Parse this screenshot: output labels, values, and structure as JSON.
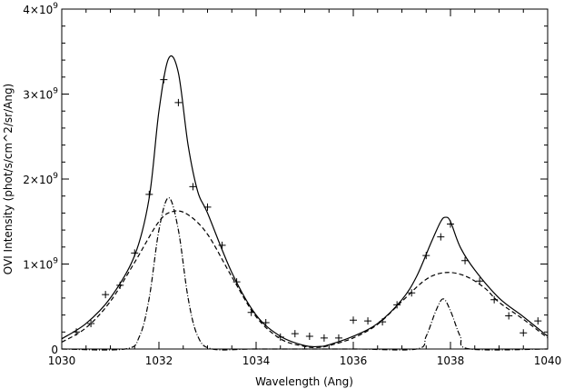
{
  "chart_data": {
    "type": "line",
    "xlabel": "Wavelength (Ang)",
    "ylabel": "OVI Intensity (phot/s/cm^2/sr/Ang)",
    "xlim": [
      1030,
      1040
    ],
    "ylim": [
      0,
      4000000000
    ],
    "x_ticks": [
      1030,
      1032,
      1034,
      1036,
      1038,
      1040
    ],
    "x_tick_labels": [
      "1030",
      "1032",
      "1034",
      "1036",
      "1038",
      "1040"
    ],
    "y_ticks": [
      0,
      1000000000,
      2000000000,
      3000000000,
      4000000000
    ],
    "y_tick_labels": [
      {
        "mant": "0",
        "exp": ""
      },
      {
        "mant": "1×10",
        "exp": "9"
      },
      {
        "mant": "2×10",
        "exp": "9"
      },
      {
        "mant": "3×10",
        "exp": "9"
      },
      {
        "mant": "4×10",
        "exp": "9"
      }
    ],
    "grid": false,
    "series": [
      {
        "style": "points-plus",
        "x": [
          1030.3,
          1030.6,
          1030.9,
          1031.2,
          1031.5,
          1031.8,
          1032.1,
          1032.4,
          1032.7,
          1033.0,
          1033.3,
          1033.6,
          1033.9,
          1034.2,
          1034.5,
          1034.8,
          1035.1,
          1035.4,
          1035.7,
          1036.0,
          1036.3,
          1036.6,
          1036.9,
          1037.2,
          1037.5,
          1037.8,
          1038.0,
          1038.3,
          1038.6,
          1038.9,
          1039.2,
          1039.5,
          1039.8
        ],
        "y": [
          200000000,
          300000000,
          640000000,
          750000000,
          1130000000,
          1820000000,
          3170000000,
          2900000000,
          1910000000,
          1670000000,
          1220000000,
          790000000,
          430000000,
          310000000,
          140000000,
          180000000,
          150000000,
          130000000,
          130000000,
          340000000,
          330000000,
          320000000,
          520000000,
          660000000,
          1100000000,
          1320000000,
          1470000000,
          1040000000,
          800000000,
          580000000,
          390000000,
          190000000,
          330000000
        ]
      },
      {
        "style": "solid",
        "x": [
          1030,
          1030.5,
          1031,
          1031.5,
          1031.8,
          1032,
          1032.2,
          1032.4,
          1032.6,
          1032.8,
          1033,
          1033.5,
          1034,
          1034.5,
          1035,
          1035.3,
          1035.5,
          1036,
          1036.5,
          1037,
          1037.3,
          1037.6,
          1037.8,
          1037.9,
          1038,
          1038.2,
          1038.5,
          1039,
          1039.5,
          1040
        ],
        "y": [
          120000000,
          300000000,
          600000000,
          1100000000,
          1780000000,
          2800000000,
          3420000000,
          3250000000,
          2400000000,
          1850000000,
          1600000000,
          900000000,
          400000000,
          150000000,
          40000000,
          30000000,
          50000000,
          150000000,
          300000000,
          580000000,
          850000000,
          1250000000,
          1500000000,
          1550000000,
          1500000000,
          1200000000,
          930000000,
          600000000,
          380000000,
          150000000
        ]
      },
      {
        "style": "dashed",
        "x": [
          1030,
          1030.5,
          1031,
          1031.5,
          1032,
          1032.3,
          1032.6,
          1033,
          1033.5,
          1034,
          1034.5,
          1035,
          1035.3,
          1035.5,
          1036,
          1036.5,
          1037,
          1037.5,
          1037.9,
          1038.3,
          1038.7,
          1039,
          1039.5,
          1040
        ],
        "y": [
          80000000,
          250000000,
          560000000,
          1020000000,
          1500000000,
          1620000000,
          1580000000,
          1350000000,
          850000000,
          380000000,
          120000000,
          30000000,
          20000000,
          40000000,
          130000000,
          290000000,
          560000000,
          820000000,
          900000000,
          860000000,
          720000000,
          550000000,
          350000000,
          130000000
        ]
      },
      {
        "style": "dashdot",
        "x": [
          1030,
          1031.3,
          1031.6,
          1031.8,
          1032.0,
          1032.2,
          1032.4,
          1032.6,
          1032.8,
          1033.1,
          1034,
          1036,
          1037.3,
          1037.5,
          1037.7,
          1037.85,
          1038.0,
          1038.2,
          1038.4,
          1040
        ],
        "y": [
          0,
          0,
          150000000,
          600000000,
          1400000000,
          1780000000,
          1400000000,
          600000000,
          150000000,
          0,
          0,
          0,
          0,
          150000000,
          450000000,
          590000000,
          450000000,
          150000000,
          0,
          0
        ]
      }
    ]
  }
}
